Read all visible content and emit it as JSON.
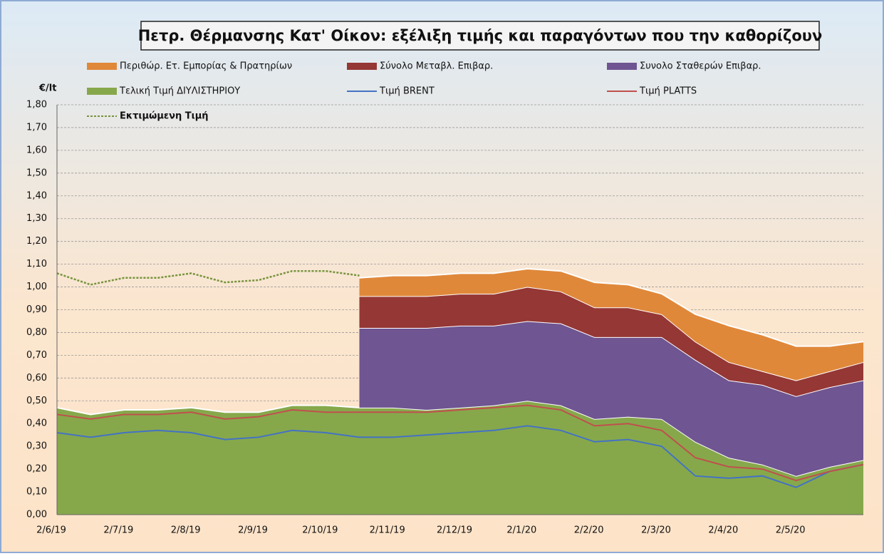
{
  "chart_data": {
    "type": "area",
    "title": "Πετρ. Θέρμανσης Κατ' Οίκον: εξέλιξη τιμής και παραγόντων που την καθορίζουν",
    "y_label": "€/lt",
    "categories": [
      "2/6/19",
      null,
      "2/7/19",
      null,
      "2/8/19",
      null,
      "2/9/19",
      null,
      "2/10/19",
      null,
      "2/11/19",
      null,
      "2/12/19",
      null,
      "2/1/20",
      null,
      "2/2/20",
      null,
      "2/3/20",
      null,
      "2/4/20",
      null,
      "2/5/20",
      null,
      null
    ],
    "series": [
      {
        "name": "Περιθώρ. Ετ. Εμπορίας & Πρατηρίων",
        "type": "area",
        "color": "#e0883a",
        "values": [
          null,
          null,
          null,
          null,
          null,
          null,
          null,
          null,
          null,
          0.08,
          0.09,
          0.09,
          0.09,
          0.09,
          0.08,
          0.09,
          0.11,
          0.1,
          0.09,
          0.12,
          0.16,
          0.16,
          0.15,
          0.11,
          0.09
        ]
      },
      {
        "name": "Σύνολο Μεταβλ. Επιβαρ.",
        "type": "area",
        "color": "#953735",
        "values": [
          null,
          null,
          null,
          null,
          null,
          null,
          null,
          null,
          null,
          0.14,
          0.14,
          0.14,
          0.14,
          0.14,
          0.15,
          0.14,
          0.13,
          0.13,
          0.1,
          0.08,
          0.08,
          0.06,
          0.07,
          0.07,
          0.08
        ]
      },
      {
        "name": "Συνολο Σταθερών Επιβαρ.",
        "type": "area",
        "color": "#6f5591",
        "values": [
          null,
          null,
          null,
          null,
          null,
          null,
          null,
          null,
          null,
          0.35,
          0.35,
          0.36,
          0.36,
          0.35,
          0.35,
          0.36,
          0.36,
          0.35,
          0.36,
          0.36,
          0.34,
          0.35,
          0.35,
          0.35,
          0.35
        ]
      },
      {
        "name": "Τελική Τιμή ΔΙΥΛΙΣΤΗΡΙΟΥ",
        "type": "area",
        "color": "#86a84b",
        "values": [
          0.47,
          0.44,
          0.46,
          0.46,
          0.47,
          0.45,
          0.45,
          0.48,
          0.48,
          0.47,
          0.47,
          0.46,
          0.47,
          0.48,
          0.5,
          0.48,
          0.42,
          0.43,
          0.42,
          0.32,
          0.25,
          0.22,
          0.17,
          0.21,
          0.24
        ]
      },
      {
        "name": "Τιμή BRENT",
        "type": "line",
        "color": "#4472c4",
        "values": [
          0.36,
          0.34,
          0.36,
          0.37,
          0.36,
          0.33,
          0.34,
          0.37,
          0.36,
          0.34,
          0.34,
          0.35,
          0.36,
          0.37,
          0.39,
          0.37,
          0.32,
          0.33,
          0.3,
          0.17,
          0.16,
          0.17,
          0.12,
          0.19,
          0.22
        ]
      },
      {
        "name": "Τιμή PLATTS",
        "type": "line",
        "color": "#c0504d",
        "values": [
          0.44,
          0.42,
          0.44,
          0.44,
          0.45,
          0.42,
          0.43,
          0.46,
          0.45,
          0.45,
          0.45,
          0.45,
          0.46,
          0.47,
          0.48,
          0.46,
          0.39,
          0.4,
          0.37,
          0.25,
          0.21,
          0.2,
          0.15,
          0.19,
          0.22
        ]
      },
      {
        "name": "Εκτιμώμενη Τιμή",
        "type": "line",
        "dash": true,
        "color": "#77933c",
        "values": [
          1.06,
          1.01,
          1.04,
          1.04,
          1.06,
          1.02,
          1.03,
          1.07,
          1.07,
          1.05,
          null,
          null,
          null,
          null,
          null,
          null,
          null,
          null,
          null,
          null,
          null,
          null,
          null,
          null,
          null
        ]
      }
    ],
    "ylim": [
      0,
      1.8
    ],
    "yticks": [
      {
        "value": 0,
        "label": "0,00"
      },
      {
        "value": 0.1,
        "label": "0,10"
      },
      {
        "value": 0.2,
        "label": "0,20"
      },
      {
        "value": 0.3,
        "label": "0,30"
      },
      {
        "value": 0.4,
        "label": "0,40"
      },
      {
        "value": 0.5,
        "label": "0,50"
      },
      {
        "value": 0.6,
        "label": "0,60"
      },
      {
        "value": 0.7,
        "label": "0,70"
      },
      {
        "value": 0.8,
        "label": "0,80"
      },
      {
        "value": 0.9,
        "label": "0,90"
      },
      {
        "value": 1.0,
        "label": "1,00"
      },
      {
        "value": 1.1,
        "label": "1,10"
      },
      {
        "value": 1.2,
        "label": "1,20"
      },
      {
        "value": 1.3,
        "label": "1,30"
      },
      {
        "value": 1.4,
        "label": "1,40"
      },
      {
        "value": 1.5,
        "label": "1,50"
      },
      {
        "value": 1.6,
        "label": "1,60"
      },
      {
        "value": 1.7,
        "label": "1,70"
      },
      {
        "value": 1.8,
        "label": "1,80"
      }
    ],
    "grid": true
  }
}
